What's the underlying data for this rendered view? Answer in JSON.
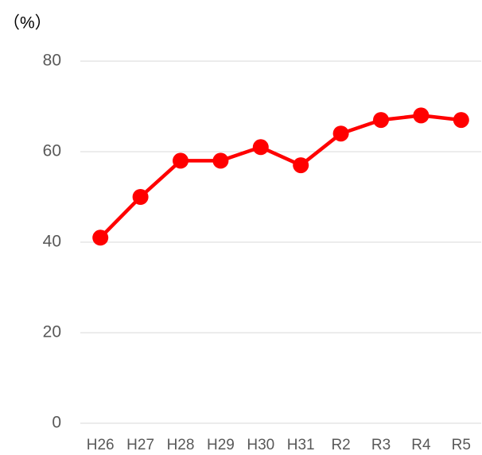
{
  "chart_data": {
    "type": "line",
    "y_axis_label": "（%）",
    "categories": [
      "H26",
      "H27",
      "H28",
      "H29",
      "H30",
      "H31",
      "R2",
      "R3",
      "R4",
      "R5"
    ],
    "values": [
      41,
      50,
      58,
      58,
      61,
      57,
      64,
      67,
      68,
      67
    ],
    "color": "#ff0000",
    "ylim": [
      0,
      80
    ],
    "yticks": [
      0,
      20,
      40,
      60,
      80
    ],
    "grid": true
  }
}
